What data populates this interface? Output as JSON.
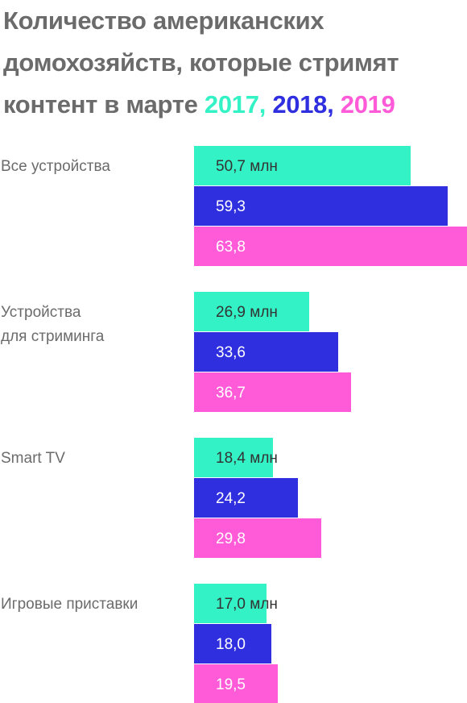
{
  "title": {
    "text": "Количество американских домохозяйств, которые стримят контент в марте",
    "years": [
      {
        "label": "2017",
        "sep": ",",
        "color": "#33f2c6"
      },
      {
        "label": "2018",
        "sep": ",",
        "color": "#2f2fe0"
      },
      {
        "label": "2019",
        "sep": "",
        "color": "#ff5ad8"
      }
    ]
  },
  "chart_data": {
    "type": "bar",
    "orientation": "horizontal",
    "title": "Количество американских домохозяйств, которые стримят контент в марте 2017, 2018, 2019",
    "categories": [
      [
        "Все устройства"
      ],
      [
        "Устройства",
        "для стриминга"
      ],
      [
        "Smart TV"
      ],
      [
        "Игровые приставки"
      ]
    ],
    "series": [
      {
        "name": "2017",
        "color": "#33f2c6",
        "text_color": "#333333",
        "values": [
          50.7,
          26.9,
          18.4,
          17.0
        ],
        "labels": [
          "50,7 млн",
          "26,9 млн",
          "18,4 млн",
          "17,0 млн"
        ]
      },
      {
        "name": "2018",
        "color": "#2f2fe0",
        "text_color": "#ffffff",
        "values": [
          59.3,
          33.6,
          24.2,
          18.0
        ],
        "labels": [
          "59,3",
          "33,6",
          "24,2",
          "18,0"
        ]
      },
      {
        "name": "2019",
        "color": "#ff5ad8",
        "text_color": "#ffffff",
        "values": [
          63.8,
          36.7,
          29.8,
          19.5
        ],
        "labels": [
          "63,8",
          "36,7",
          "29,8",
          "19,5"
        ]
      }
    ],
    "xlim": [
      0,
      63.8
    ],
    "grid": false,
    "legend": "title"
  }
}
